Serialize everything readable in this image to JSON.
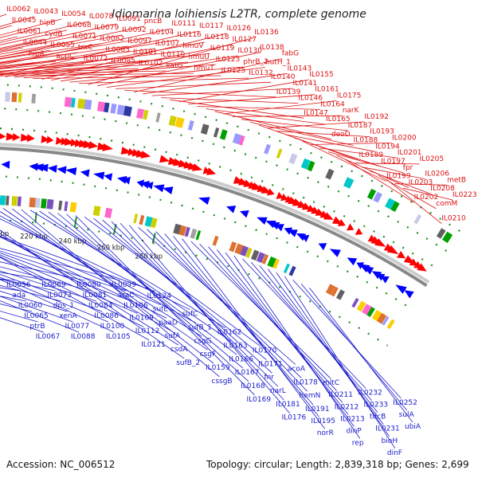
{
  "title": "Idiomarina loihiensis L2TR, complete genome",
  "accession": "Accession: NC_006512",
  "topology": "Topology: circular; Length: 2,839,318 bp; Genes: 2,699",
  "colors": {
    "forward_label": "#dd1010",
    "reverse_label": "#1a1acc",
    "forward_gene": "#ff0000",
    "reverse_gene": "#0000ff",
    "backbone": "#888888",
    "tick": "#1f8f1f"
  },
  "ticks": [
    "60 kbp",
    "80 kbp",
    "100 kbp",
    "120 kbp",
    "140 kbp",
    "160 kbp",
    "180 kbp",
    "200 kbp",
    "220 kbp",
    "240 kbp",
    "260 kbp",
    "280 kbp"
  ],
  "forward_labels": [
    "IL0062",
    "IL0045",
    "IL0061",
    "IL0044",
    "hipA",
    "IL0043",
    "hipB",
    "cydB",
    "IL0055",
    "appC",
    "IL0054",
    "IL0068",
    "IL0071",
    "trxC",
    "IL0072",
    "IL0078",
    "IL0079",
    "IL0082",
    "IL0083",
    "IL0085",
    "IL0091",
    "IL0092",
    "IL0097",
    "IL0101",
    "IL0102",
    "pncB",
    "IL0104",
    "IL0107",
    "IL0110",
    "katG",
    "IL0111",
    "IL0116",
    "hmuV",
    "hmuU",
    "hmuT",
    "IL0117",
    "IL0118",
    "IL0119",
    "IL0123",
    "IL0125",
    "IL0126",
    "IL0127",
    "IL0130",
    "phrB_2",
    "IL0132",
    "IL0136",
    "IL0138",
    "hutH_1",
    "IL0140",
    "IL0139",
    "fabG",
    "IL0143",
    "IL0141",
    "IL0146",
    "IL0147",
    "IL0155",
    "IL0161",
    "IL0164",
    "IL0165",
    "deoD",
    "IL0175",
    "narK",
    "IL0187",
    "IL0188",
    "IL0189",
    "IL0192",
    "IL0193",
    "IL0194",
    "IL0197",
    "IL0199",
    "IL0200",
    "IL0201",
    "fpr",
    "IL0203",
    "IL0202",
    "IL0205",
    "IL0206",
    "IL0208",
    "comM",
    "IL0210",
    "metB",
    "IL0223"
  ],
  "reverse_labels": [
    "IL0056",
    "ada",
    "IL0060",
    "IL0065",
    "ptrB",
    "IL0067",
    "IL0069",
    "IL0073",
    "dps_1",
    "xenA",
    "IL0077",
    "IL0088",
    "IL0080",
    "IL0081",
    "IL0084",
    "IL0086",
    "IL0100",
    "IL0105",
    "IL0099",
    "araC",
    "IL0106",
    "IL0109",
    "IL0112",
    "IL0121",
    "IL0124",
    "sufE",
    "paaD",
    "sufA",
    "csdA",
    "sufB_2",
    "sufC",
    "sufB_1",
    "csgG",
    "csgF",
    "IL0159",
    "cssgB",
    "IL0162",
    "IL0163",
    "IL0166",
    "IL0167",
    "IL0168",
    "IL0169",
    "IL0170",
    "IL0171",
    "fnr",
    "narL",
    "IL0181",
    "IL0176",
    "acoA",
    "IL0178",
    "hemN",
    "IL0191",
    "IL0195",
    "norR",
    "mltC",
    "IL0211",
    "IL0212",
    "IL0213",
    "dinP",
    "rep",
    "IL0232",
    "IL0233",
    "tdcB",
    "IL0231",
    "bioH",
    "dinF",
    "IL0252",
    "sulA",
    "ubiA"
  ]
}
